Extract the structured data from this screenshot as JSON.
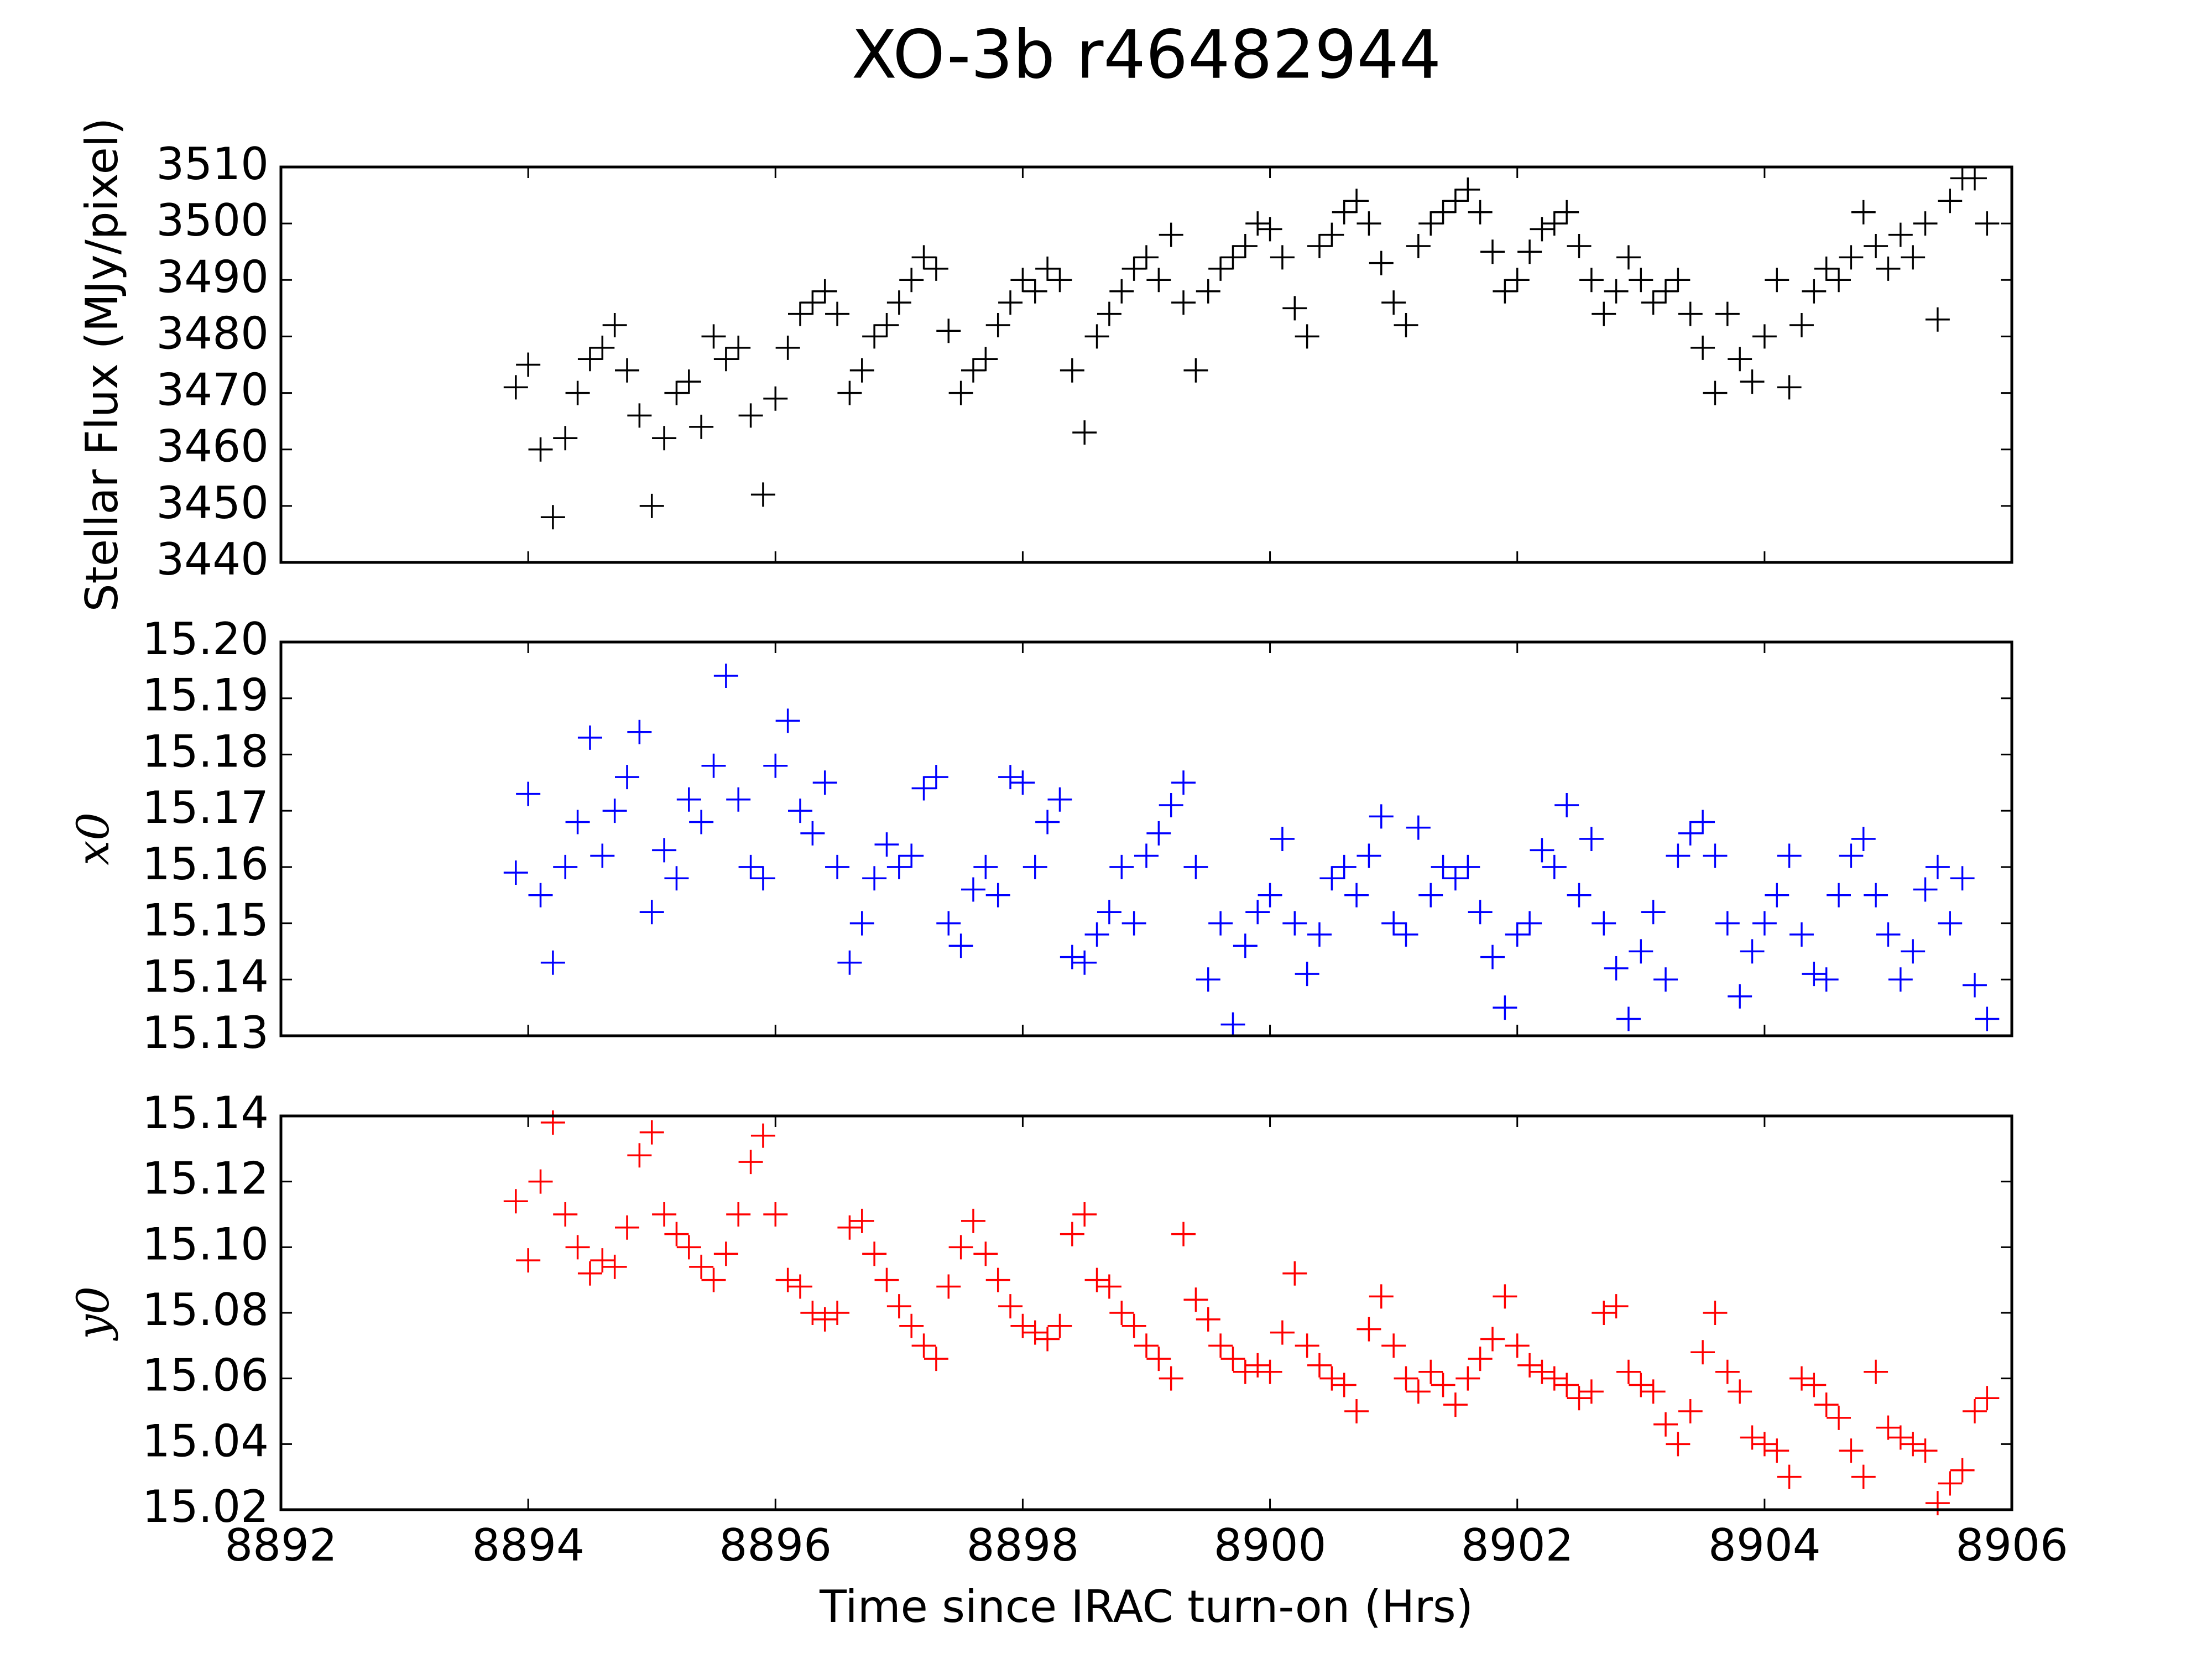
{
  "chart_data": [
    {
      "type": "scatter",
      "title": "XO-3b r46482944",
      "ylabel": "Stellar Flux (MJy/pixel)",
      "color": "#000000",
      "xlim": [
        8892,
        8906
      ],
      "xticks": [
        8892,
        8894,
        8896,
        8898,
        8900,
        8902,
        8904,
        8906
      ],
      "ylim": [
        3440,
        3510
      ],
      "yticks": [
        3440,
        3450,
        3460,
        3470,
        3480,
        3490,
        3500,
        3510
      ],
      "x": [
        8893.9,
        8894.0,
        8894.1,
        8894.2,
        8894.3,
        8894.4,
        8894.5,
        8894.6,
        8894.7,
        8894.8,
        8894.9,
        8895.0,
        8895.1,
        8895.2,
        8895.3,
        8895.4,
        8895.5,
        8895.6,
        8895.7,
        8895.8,
        8895.9,
        8896.0,
        8896.1,
        8896.2,
        8896.3,
        8896.4,
        8896.5,
        8896.6,
        8896.7,
        8896.8,
        8896.9,
        8897.0,
        8897.1,
        8897.2,
        8897.3,
        8897.4,
        8897.5,
        8897.6,
        8897.7,
        8897.8,
        8897.9,
        8898.0,
        8898.1,
        8898.2,
        8898.3,
        8898.4,
        8898.5,
        8898.6,
        8898.7,
        8898.8,
        8898.9,
        8899.0,
        8899.1,
        8899.2,
        8899.3,
        8899.4,
        8899.5,
        8899.6,
        8899.7,
        8899.8,
        8899.9,
        8900.0,
        8900.1,
        8900.2,
        8900.3,
        8900.4,
        8900.5,
        8900.6,
        8900.7,
        8900.8,
        8900.9,
        8901.0,
        8901.1,
        8901.2,
        8901.3,
        8901.4,
        8901.5,
        8901.6,
        8901.7,
        8901.8,
        8901.9,
        8902.0,
        8902.1,
        8902.2,
        8902.3,
        8902.4,
        8902.5,
        8902.6,
        8902.7,
        8902.8,
        8902.9,
        8903.0,
        8903.1,
        8903.2,
        8903.3,
        8903.4,
        8903.5,
        8903.6,
        8903.7,
        8903.8,
        8903.9,
        8904.0,
        8904.1,
        8904.2,
        8904.3,
        8904.4,
        8904.5,
        8904.6,
        8904.7,
        8904.8,
        8904.9,
        8905.0,
        8905.1,
        8905.2,
        8905.3,
        8905.4,
        8905.5,
        8905.6,
        8905.7,
        8905.8
      ],
      "values": [
        3471,
        3475,
        3460,
        3448,
        3462,
        3470,
        3476,
        3478,
        3482,
        3474,
        3466,
        3450,
        3462,
        3470,
        3472,
        3464,
        3480,
        3476,
        3478,
        3466,
        3452,
        3469,
        3478,
        3484,
        3486,
        3488,
        3484,
        3470,
        3474,
        3480,
        3482,
        3486,
        3490,
        3494,
        3492,
        3481,
        3470,
        3474,
        3476,
        3482,
        3486,
        3490,
        3488,
        3492,
        3490,
        3474,
        3463,
        3480,
        3484,
        3488,
        3492,
        3494,
        3490,
        3498,
        3486,
        3474,
        3488,
        3492,
        3494,
        3496,
        3500,
        3499,
        3494,
        3485,
        3480,
        3496,
        3498,
        3502,
        3504,
        3500,
        3493,
        3486,
        3482,
        3496,
        3500,
        3502,
        3504,
        3506,
        3502,
        3495,
        3488,
        3490,
        3495,
        3499,
        3500,
        3502,
        3496,
        3490,
        3484,
        3488,
        3494,
        3490,
        3486,
        3488,
        3490,
        3484,
        3478,
        3470,
        3484,
        3476,
        3472,
        3480,
        3490,
        3471,
        3482,
        3488,
        3492,
        3490,
        3494,
        3502,
        3496,
        3492,
        3498,
        3494,
        3500,
        3483,
        3504,
        3508,
        3508,
        3500
      ]
    },
    {
      "type": "scatter",
      "ylabel": "x0",
      "color": "#0000ff",
      "xlim": [
        8892,
        8906
      ],
      "xticks": [
        8892,
        8894,
        8896,
        8898,
        8900,
        8902,
        8904,
        8906
      ],
      "ylim": [
        15.13,
        15.2
      ],
      "yticks": [
        15.13,
        15.14,
        15.15,
        15.16,
        15.17,
        15.18,
        15.19,
        {
          "value": 15.2,
          "label": "15.20"
        }
      ],
      "x": [
        8893.9,
        8894.0,
        8894.1,
        8894.2,
        8894.3,
        8894.4,
        8894.5,
        8894.6,
        8894.7,
        8894.8,
        8894.9,
        8895.0,
        8895.1,
        8895.2,
        8895.3,
        8895.4,
        8895.5,
        8895.6,
        8895.7,
        8895.8,
        8895.9,
        8896.0,
        8896.1,
        8896.2,
        8896.3,
        8896.4,
        8896.5,
        8896.6,
        8896.7,
        8896.8,
        8896.9,
        8897.0,
        8897.1,
        8897.2,
        8897.3,
        8897.4,
        8897.5,
        8897.6,
        8897.7,
        8897.8,
        8897.9,
        8898.0,
        8898.1,
        8898.2,
        8898.3,
        8898.4,
        8898.5,
        8898.6,
        8898.7,
        8898.8,
        8898.9,
        8899.0,
        8899.1,
        8899.2,
        8899.3,
        8899.4,
        8899.5,
        8899.6,
        8899.7,
        8899.8,
        8899.9,
        8900.0,
        8900.1,
        8900.2,
        8900.3,
        8900.4,
        8900.5,
        8900.6,
        8900.7,
        8900.8,
        8900.9,
        8901.0,
        8901.1,
        8901.2,
        8901.3,
        8901.4,
        8901.5,
        8901.6,
        8901.7,
        8901.8,
        8901.9,
        8902.0,
        8902.1,
        8902.2,
        8902.3,
        8902.4,
        8902.5,
        8902.6,
        8902.7,
        8902.8,
        8902.9,
        8903.0,
        8903.1,
        8903.2,
        8903.3,
        8903.4,
        8903.5,
        8903.6,
        8903.7,
        8903.8,
        8903.9,
        8904.0,
        8904.1,
        8904.2,
        8904.3,
        8904.4,
        8904.5,
        8904.6,
        8904.7,
        8904.8,
        8904.9,
        8905.0,
        8905.1,
        8905.2,
        8905.3,
        8905.4,
        8905.5,
        8905.6,
        8905.7,
        8905.8
      ],
      "values": [
        15.159,
        15.173,
        15.155,
        15.143,
        15.16,
        15.168,
        15.183,
        15.162,
        15.17,
        15.176,
        15.184,
        15.152,
        15.163,
        15.158,
        15.172,
        15.168,
        15.178,
        15.194,
        15.172,
        15.16,
        15.158,
        15.178,
        15.186,
        15.17,
        15.166,
        15.175,
        15.16,
        15.143,
        15.15,
        15.158,
        15.164,
        15.16,
        15.162,
        15.174,
        15.176,
        15.15,
        15.146,
        15.156,
        15.16,
        15.155,
        15.176,
        15.175,
        15.16,
        15.168,
        15.172,
        15.144,
        15.143,
        15.148,
        15.152,
        15.16,
        15.15,
        15.162,
        15.166,
        15.171,
        15.175,
        15.16,
        15.14,
        15.15,
        15.132,
        15.146,
        15.152,
        15.155,
        15.165,
        15.15,
        15.141,
        15.148,
        15.158,
        15.16,
        15.155,
        15.162,
        15.169,
        15.15,
        15.148,
        15.167,
        15.155,
        15.16,
        15.158,
        15.16,
        15.152,
        15.144,
        15.135,
        15.148,
        15.15,
        15.163,
        15.16,
        15.171,
        15.155,
        15.165,
        15.15,
        15.142,
        15.133,
        15.145,
        15.152,
        15.14,
        15.162,
        15.166,
        15.168,
        15.162,
        15.15,
        15.137,
        15.145,
        15.15,
        15.155,
        15.162,
        15.148,
        15.141,
        15.14,
        15.155,
        15.162,
        15.165,
        15.155,
        15.148,
        15.14,
        15.145,
        15.156,
        15.16,
        15.15,
        15.158,
        15.139,
        15.133
      ]
    },
    {
      "type": "scatter",
      "ylabel": "y0",
      "xlabel": "Time since IRAC turn-on (Hrs)",
      "color": "#ff0000",
      "xlim": [
        8892,
        8906
      ],
      "xticks": [
        8892,
        8894,
        8896,
        8898,
        8900,
        8902,
        8904,
        8906
      ],
      "ylim": [
        15.02,
        15.14
      ],
      "yticks": [
        15.02,
        15.04,
        15.06,
        15.08,
        {
          "value": 15.1,
          "label": "15.10"
        },
        15.12,
        15.14
      ],
      "x": [
        8893.9,
        8894.0,
        8894.1,
        8894.2,
        8894.3,
        8894.4,
        8894.5,
        8894.6,
        8894.7,
        8894.8,
        8894.9,
        8895.0,
        8895.1,
        8895.2,
        8895.3,
        8895.4,
        8895.5,
        8895.6,
        8895.7,
        8895.8,
        8895.9,
        8896.0,
        8896.1,
        8896.2,
        8896.3,
        8896.4,
        8896.5,
        8896.6,
        8896.7,
        8896.8,
        8896.9,
        8897.0,
        8897.1,
        8897.2,
        8897.3,
        8897.4,
        8897.5,
        8897.6,
        8897.7,
        8897.8,
        8897.9,
        8898.0,
        8898.1,
        8898.2,
        8898.3,
        8898.4,
        8898.5,
        8898.6,
        8898.7,
        8898.8,
        8898.9,
        8899.0,
        8899.1,
        8899.2,
        8899.3,
        8899.4,
        8899.5,
        8899.6,
        8899.7,
        8899.8,
        8899.9,
        8900.0,
        8900.1,
        8900.2,
        8900.3,
        8900.4,
        8900.5,
        8900.6,
        8900.7,
        8900.8,
        8900.9,
        8901.0,
        8901.1,
        8901.2,
        8901.3,
        8901.4,
        8901.5,
        8901.6,
        8901.7,
        8901.8,
        8901.9,
        8902.0,
        8902.1,
        8902.2,
        8902.3,
        8902.4,
        8902.5,
        8902.6,
        8902.7,
        8902.8,
        8902.9,
        8903.0,
        8903.1,
        8903.2,
        8903.3,
        8903.4,
        8903.5,
        8903.6,
        8903.7,
        8903.8,
        8903.9,
        8904.0,
        8904.1,
        8904.2,
        8904.3,
        8904.4,
        8904.5,
        8904.6,
        8904.7,
        8904.8,
        8904.9,
        8905.0,
        8905.1,
        8905.2,
        8905.3,
        8905.4,
        8905.5,
        8905.6,
        8905.7,
        8905.8
      ],
      "values": [
        15.114,
        15.096,
        15.12,
        15.138,
        15.11,
        15.1,
        15.092,
        15.096,
        15.094,
        15.106,
        15.128,
        15.135,
        15.11,
        15.104,
        15.1,
        15.094,
        15.09,
        15.098,
        15.11,
        15.126,
        15.134,
        15.11,
        15.09,
        15.088,
        15.08,
        15.078,
        15.08,
        15.106,
        15.108,
        15.098,
        15.09,
        15.082,
        15.076,
        15.07,
        15.066,
        15.088,
        15.1,
        15.108,
        15.098,
        15.09,
        15.082,
        15.076,
        15.074,
        15.072,
        15.076,
        15.104,
        15.11,
        15.09,
        15.088,
        15.08,
        15.076,
        15.07,
        15.066,
        15.06,
        15.104,
        15.084,
        15.078,
        15.07,
        15.066,
        15.062,
        15.064,
        15.062,
        15.074,
        15.092,
        15.07,
        15.064,
        15.06,
        15.058,
        15.05,
        15.075,
        15.085,
        15.07,
        15.06,
        15.056,
        15.062,
        15.058,
        15.052,
        15.06,
        15.066,
        15.072,
        15.085,
        15.07,
        15.064,
        15.062,
        15.06,
        15.058,
        15.054,
        15.056,
        15.08,
        15.082,
        15.062,
        15.058,
        15.056,
        15.046,
        15.04,
        15.05,
        15.068,
        15.08,
        15.062,
        15.056,
        15.042,
        15.04,
        15.038,
        15.03,
        15.06,
        15.058,
        15.052,
        15.048,
        15.038,
        15.03,
        15.062,
        15.045,
        15.042,
        15.04,
        15.038,
        15.022,
        15.028,
        15.032,
        15.05,
        15.054
      ]
    }
  ]
}
